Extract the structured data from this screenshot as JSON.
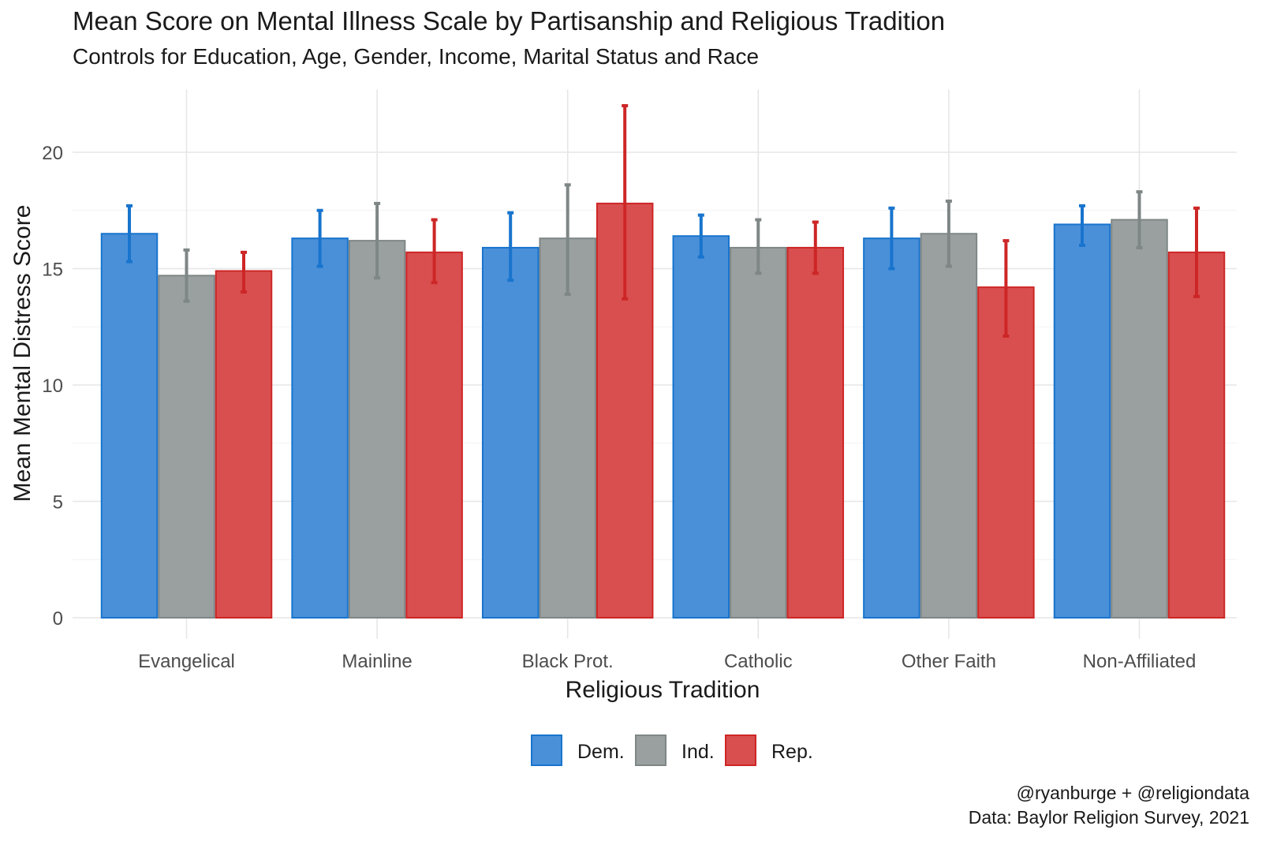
{
  "chart_data": {
    "type": "bar",
    "title": "Mean Score on Mental Illness Scale by Partisanship and Religious Tradition",
    "subtitle": "Controls for Education, Age, Gender, Income, Marital Status and Race",
    "xlabel": "Religious Tradition",
    "ylabel": "Mean Mental Distress Score",
    "ylim": [
      0,
      22
    ],
    "yticks": [
      0,
      5,
      10,
      15,
      20
    ],
    "categories": [
      "Evangelical",
      "Mainline",
      "Black Prot.",
      "Catholic",
      "Other Faith",
      "Non-Affiliated"
    ],
    "series": [
      {
        "name": "Dem.",
        "color": "#1874CD",
        "fill": "#4A90D9",
        "values": [
          16.5,
          16.3,
          15.9,
          16.4,
          16.3,
          16.9
        ],
        "lower": [
          15.3,
          15.1,
          14.5,
          15.5,
          15.0,
          16.0
        ],
        "upper": [
          17.7,
          17.5,
          17.4,
          17.3,
          17.6,
          17.7
        ]
      },
      {
        "name": "Ind.",
        "color": "#7F8686",
        "fill": "#9AA0A0",
        "values": [
          14.7,
          16.2,
          16.3,
          15.9,
          16.5,
          17.1
        ],
        "lower": [
          13.6,
          14.6,
          13.9,
          14.8,
          15.1,
          15.9
        ],
        "upper": [
          15.8,
          17.8,
          18.6,
          17.1,
          17.9,
          18.3
        ]
      },
      {
        "name": "Rep.",
        "color": "#CD2626",
        "fill": "#D94F4F",
        "values": [
          14.9,
          15.7,
          17.8,
          15.9,
          14.2,
          15.7
        ],
        "lower": [
          14.0,
          14.4,
          13.7,
          14.8,
          12.1,
          13.8
        ],
        "upper": [
          15.7,
          17.1,
          22.0,
          17.0,
          16.2,
          17.6
        ]
      }
    ],
    "legend_position": "bottom",
    "grid": true
  },
  "caption": {
    "line1": "@ryanburge + @religiondata",
    "line2": "Data: Baylor Religion Survey, 2021"
  }
}
